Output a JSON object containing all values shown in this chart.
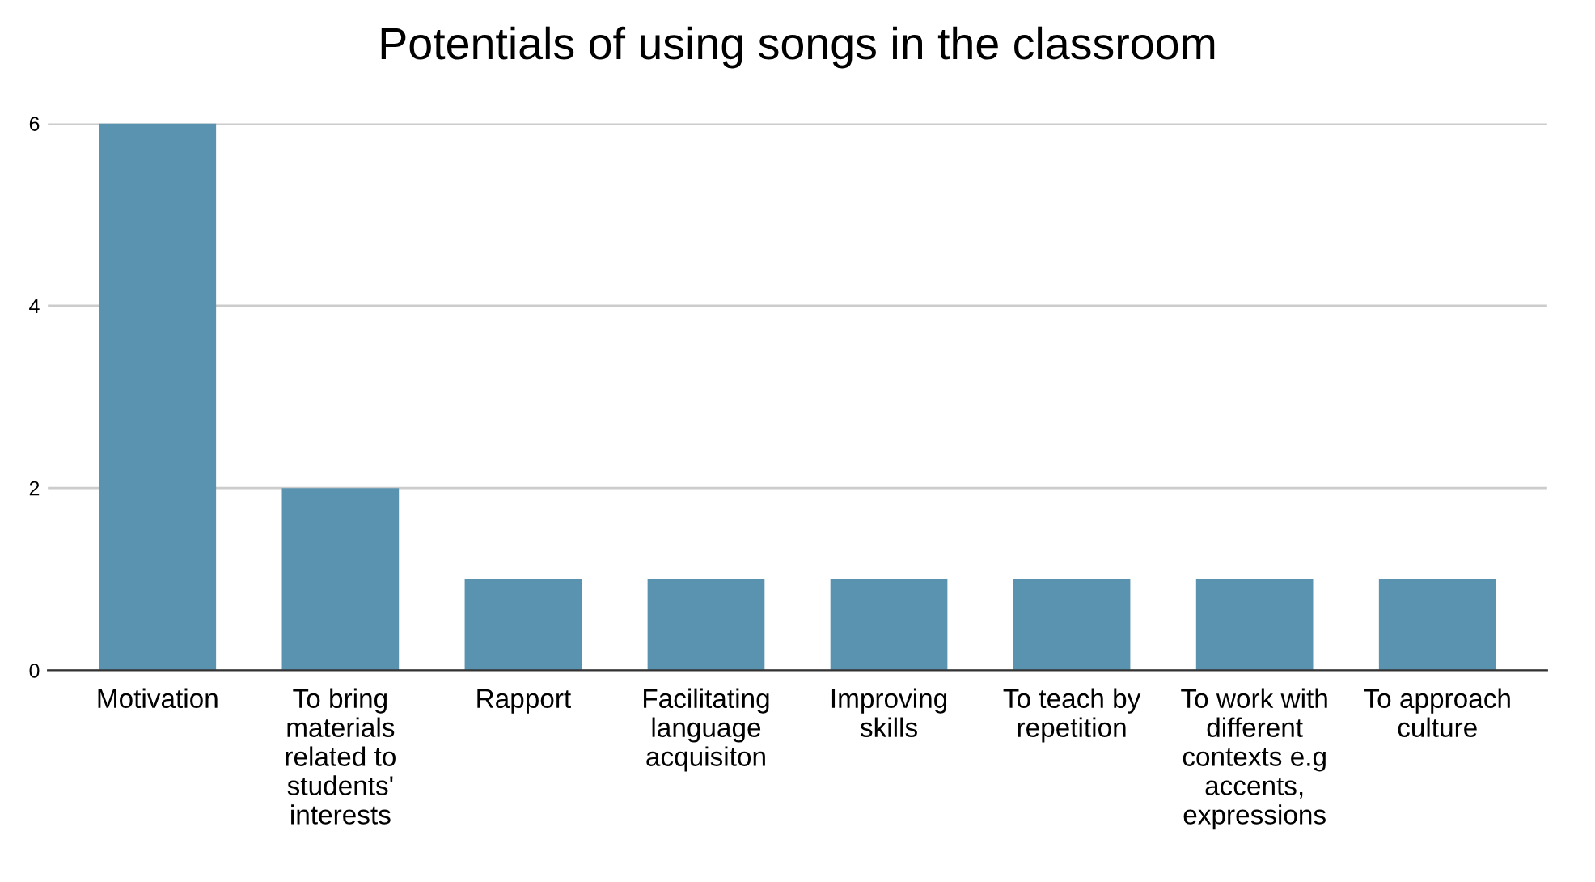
{
  "chart_data": {
    "type": "bar",
    "title": "Potentials of using songs in the classroom",
    "categories": [
      "Motivation",
      "To bring materials related to students' interests",
      "Rapport",
      "Facilitating language acquisiton",
      "Improving skills",
      "To teach by repetition",
      "To work with different contexts e.g accents, expressions",
      "To approach culture"
    ],
    "values": [
      6,
      2,
      1,
      1,
      1,
      1,
      1,
      1
    ],
    "color": "#5a93b0",
    "ylim": [
      0,
      6
    ],
    "yticks": [
      0,
      2,
      4,
      6
    ],
    "grid": "y"
  }
}
